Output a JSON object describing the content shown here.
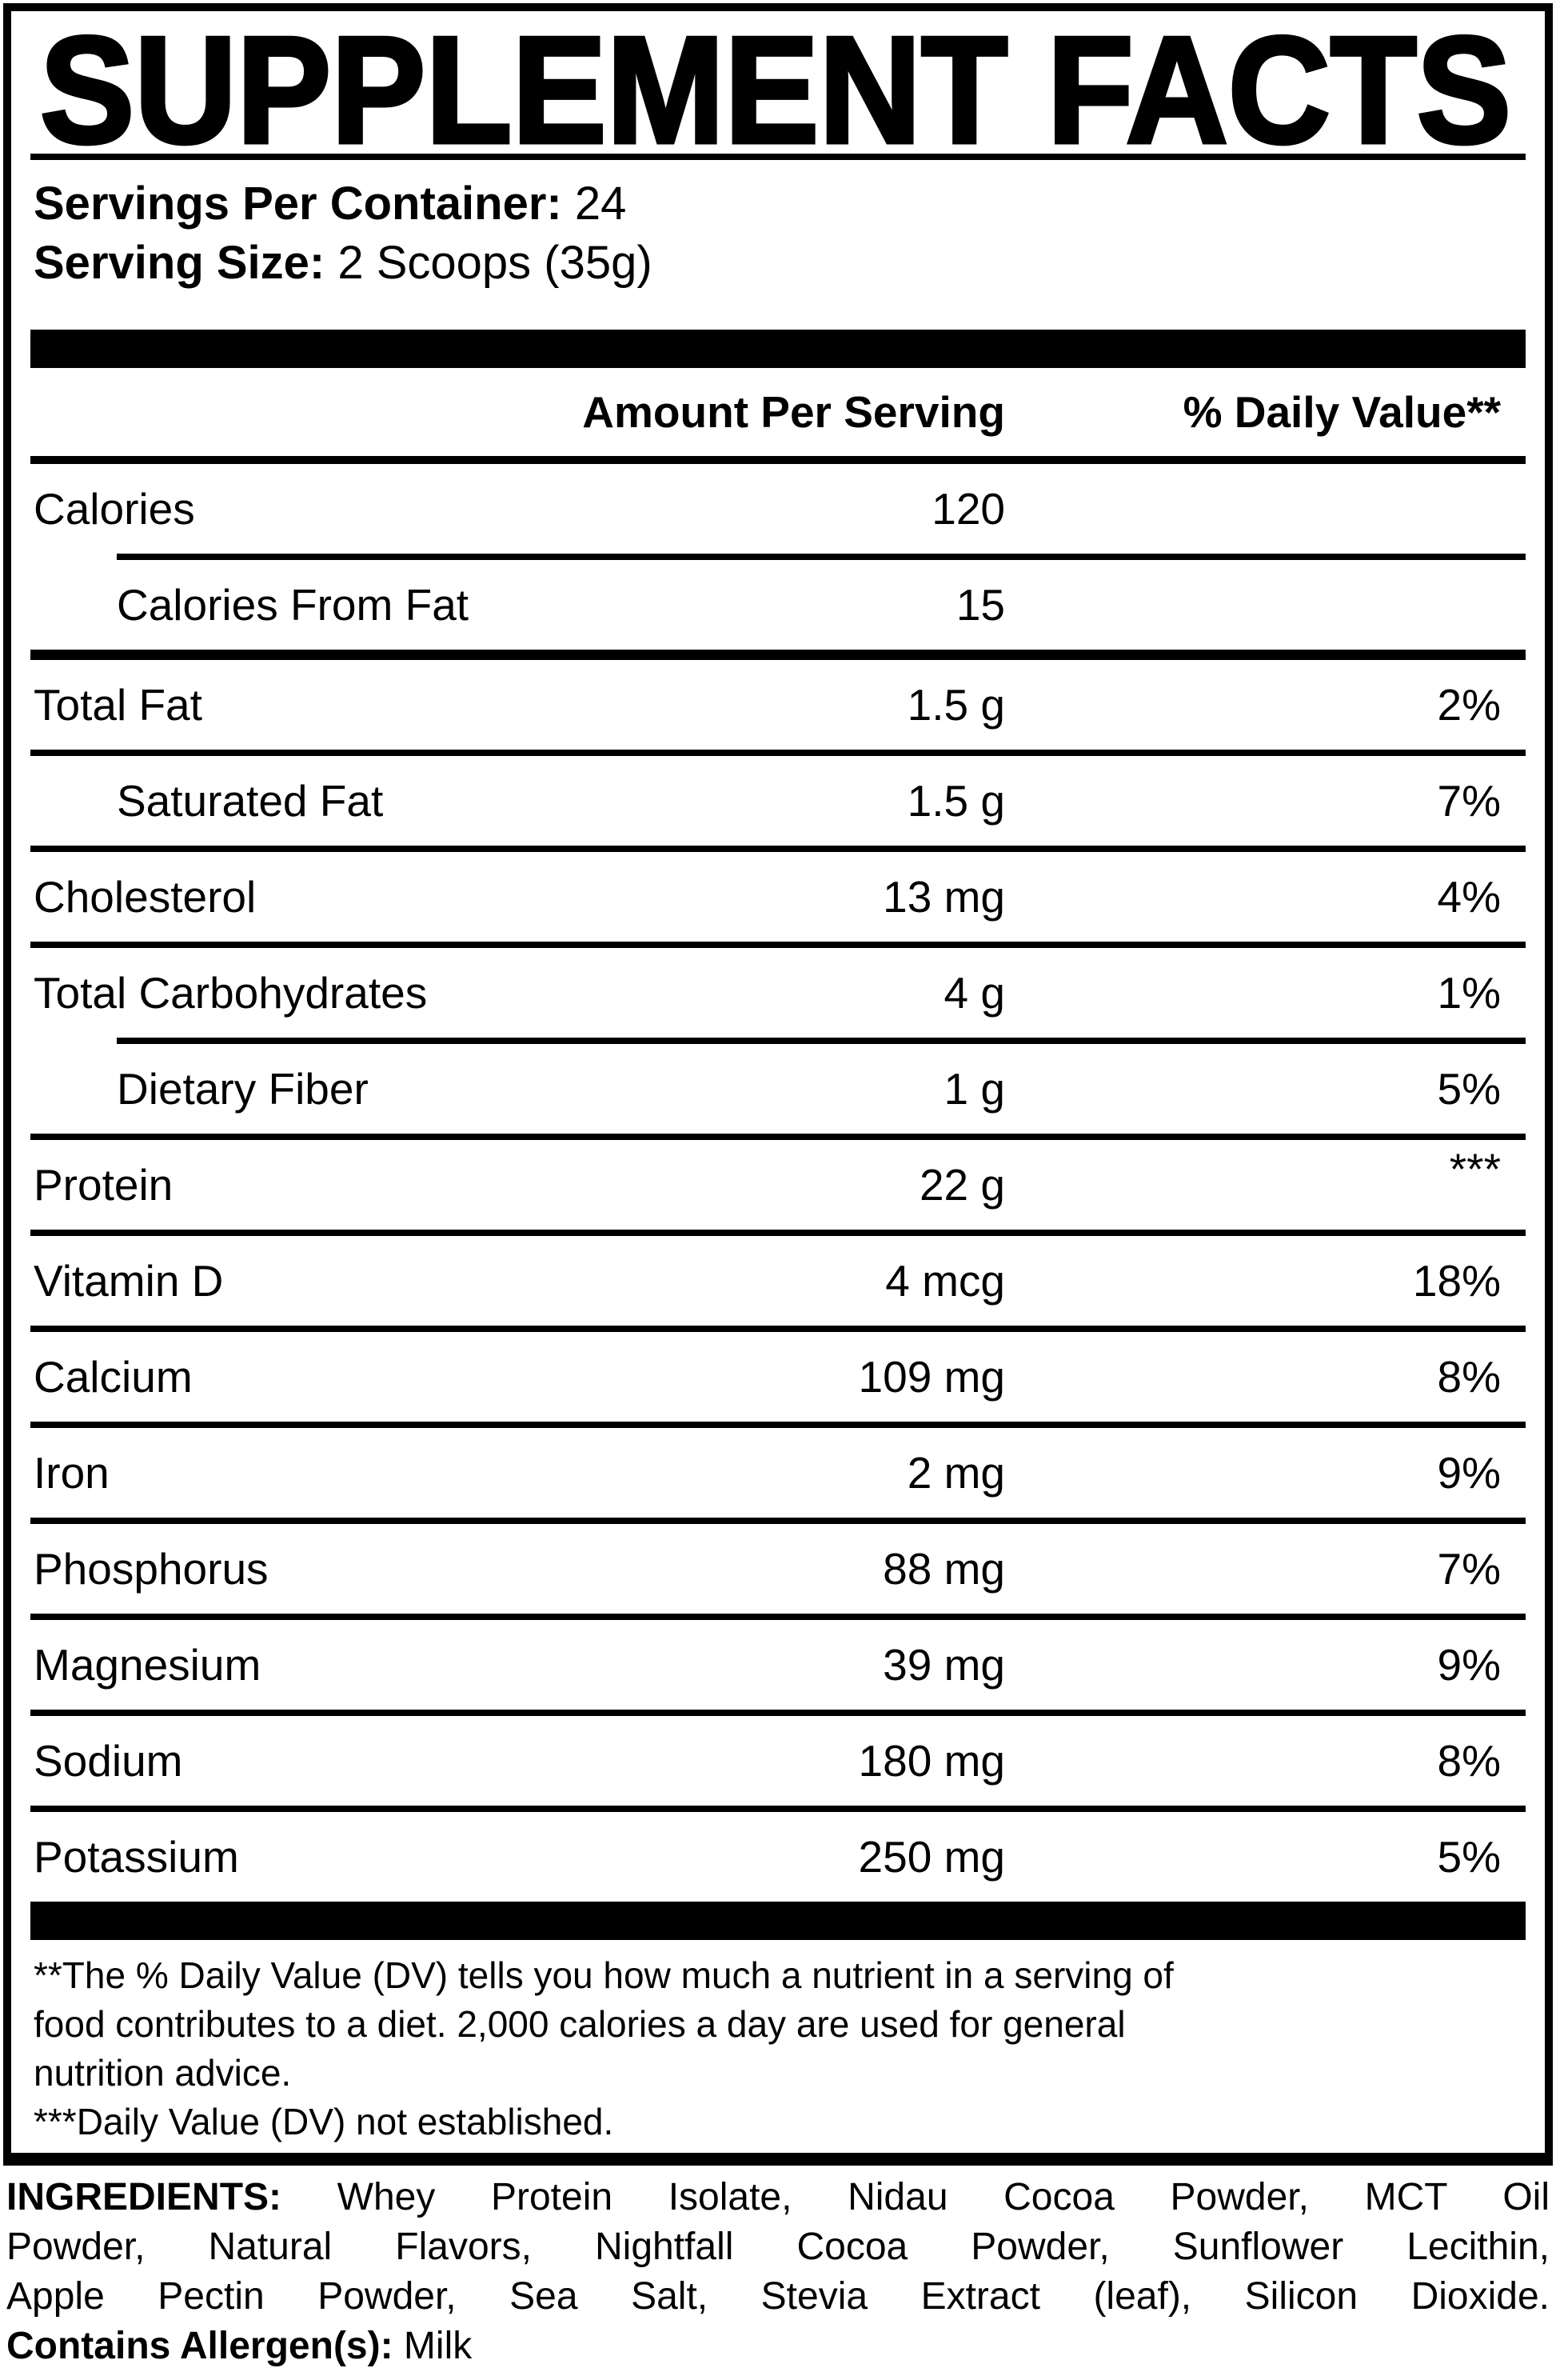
{
  "title": "SUPPLEMENT FACTS",
  "serving_info": {
    "servings_per_container_label": "Servings Per Container:",
    "servings_per_container_value": " 24",
    "serving_size_label": "Serving Size:",
    "serving_size_value": " 2 Scoops (35g)"
  },
  "table": {
    "amount_header": "Amount Per Serving",
    "dv_header": "% Daily Value**",
    "rows": [
      {
        "label": "Calories",
        "amount": "120",
        "dv": "",
        "indent": false,
        "rule_below": "indent"
      },
      {
        "label": "Calories From Fat",
        "amount": "15",
        "dv": "",
        "indent": true,
        "rule_below": "thick"
      },
      {
        "label": "Total Fat",
        "amount": "1.5 g",
        "dv": "2%",
        "indent": false,
        "rule_below": "full"
      },
      {
        "label": "Saturated Fat",
        "amount": "1.5 g",
        "dv": "7%",
        "indent": true,
        "rule_below": "full"
      },
      {
        "label": "Cholesterol",
        "amount": "13 mg",
        "dv": "4%",
        "indent": false,
        "rule_below": "full"
      },
      {
        "label": "Total Carbohydrates",
        "amount": "4 g",
        "dv": "1%",
        "indent": false,
        "rule_below": "indent"
      },
      {
        "label": "Dietary Fiber",
        "amount": "1 g",
        "dv": "5%",
        "indent": true,
        "rule_below": "full"
      },
      {
        "label": "Protein",
        "amount": "22 g",
        "dv": "***",
        "indent": false,
        "rule_below": "full"
      },
      {
        "label": "Vitamin D",
        "amount": "4 mcg",
        "dv": "18%",
        "indent": false,
        "rule_below": "full"
      },
      {
        "label": "Calcium",
        "amount": "109 mg",
        "dv": "8%",
        "indent": false,
        "rule_below": "full"
      },
      {
        "label": "Iron",
        "amount": "2 mg",
        "dv": "9%",
        "indent": false,
        "rule_below": "full"
      },
      {
        "label": "Phosphorus",
        "amount": "88 mg",
        "dv": "7%",
        "indent": false,
        "rule_below": "full"
      },
      {
        "label": "Magnesium",
        "amount": "39 mg",
        "dv": "9%",
        "indent": false,
        "rule_below": "full"
      },
      {
        "label": "Sodium",
        "amount": "180 mg",
        "dv": "8%",
        "indent": false,
        "rule_below": "full"
      },
      {
        "label": "Potassium",
        "amount": "250 mg",
        "dv": "5%",
        "indent": false,
        "rule_below": "none"
      }
    ]
  },
  "footnote": {
    "lines": "**The % Daily Value (DV) tells you how much a nutrient in a serving of\nfood contributes to a diet. 2,000 calories a day are used for general\nnutrition advice.\n***Daily Value (DV) not established."
  },
  "ingredients": {
    "label": "INGREDIENTS:",
    "text": " Whey Protein Isolate, Nidau Cocoa Powder, MCT Oil\nPowder, Natural Flavors, Nightfall Cocoa Powder, Sunflower Lecithin,\nApple Pectin Powder, Sea Salt, Stevia Extract (leaf), Silicon Dioxide.",
    "allergen_label": "Contains Allergen(s):",
    "allergen_value": " Milk"
  },
  "colors": {
    "ink": "#000000",
    "paper": "#ffffff"
  }
}
